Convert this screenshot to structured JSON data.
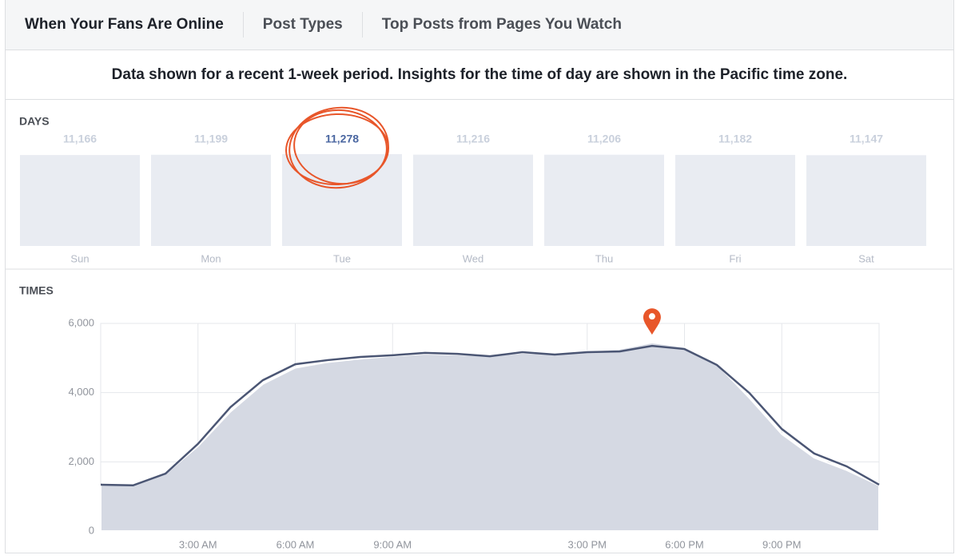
{
  "tabs": [
    "When Your Fans Are Online",
    "Post Types",
    "Top Posts from Pages You Watch"
  ],
  "notice": "Data shown for a recent 1-week period. Insights for the time of day are shown in the Pacific time zone.",
  "chart_data": [
    {
      "type": "bar",
      "title": "DAYS",
      "categories": [
        "Sun",
        "Mon",
        "Tue",
        "Wed",
        "Thu",
        "Fri",
        "Sat"
      ],
      "values": [
        11166,
        11199,
        11278,
        11216,
        11206,
        11182,
        11147
      ],
      "value_labels": [
        "11,166",
        "11,199",
        "11,278",
        "11,216",
        "11,206",
        "11,182",
        "11,147"
      ],
      "color": "#e9ecf2"
    },
    {
      "type": "line",
      "title": "TIMES",
      "x": [
        0,
        1,
        2,
        3,
        4,
        5,
        6,
        7,
        8,
        9,
        10,
        11,
        12,
        13,
        14,
        15,
        16,
        17,
        18,
        19,
        20,
        21,
        22,
        23,
        24
      ],
      "series": [
        {
          "color": "#d5d9e3",
          "values": [
            1340,
            1320,
            1660,
            2450,
            3450,
            4250,
            4720,
            4880,
            4980,
            5060,
            5120,
            5100,
            5060,
            5150,
            5120,
            5200,
            5260,
            5450,
            5320,
            4820,
            3850,
            2800,
            2120,
            1760,
            1320
          ]
        },
        {
          "color": "#4b5674",
          "values": [
            1340,
            1320,
            1660,
            2520,
            3580,
            4360,
            4820,
            4940,
            5030,
            5080,
            5150,
            5120,
            5050,
            5170,
            5100,
            5170,
            5190,
            5350,
            5260,
            4800,
            3990,
            2950,
            2240,
            1870,
            1340
          ]
        }
      ],
      "xlim": [
        0,
        24
      ],
      "xticks": [
        {
          "value": 3,
          "label": "3:00 AM"
        },
        {
          "value": 6,
          "label": "6:00 AM"
        },
        {
          "value": 9,
          "label": "9:00 AM"
        },
        {
          "value": 15,
          "label": "3:00 PM"
        },
        {
          "value": 18,
          "label": "6:00 PM"
        },
        {
          "value": 21,
          "label": "9:00 PM"
        }
      ],
      "ylim": [
        0,
        6000
      ],
      "yticks": [
        0,
        {
          "value": 2000,
          "label": "2,000"
        },
        {
          "value": 4000,
          "label": "4,000"
        },
        {
          "value": 6000,
          "label": "6,000"
        }
      ],
      "grid": true
    }
  ]
}
